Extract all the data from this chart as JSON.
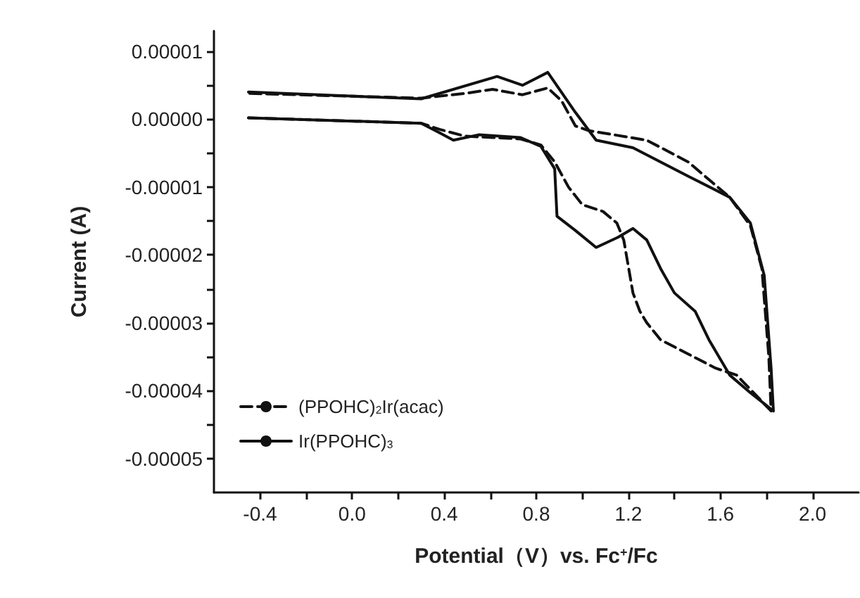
{
  "chart_data": {
    "type": "line",
    "xlabel": "Potential（V）vs. Fc$^{+}$/Fc",
    "ylabel": "Current (A)",
    "xlim": [
      -0.6,
      2.2
    ],
    "xticks": [
      {
        "value": -0.4,
        "label": "-0.4"
      },
      {
        "value": -0.2,
        "label": null
      },
      {
        "value": 0,
        "label": "0.0"
      },
      {
        "value": 0.2,
        "label": null
      },
      {
        "value": 0.4,
        "label": "0.4"
      },
      {
        "value": 0.6,
        "label": null
      },
      {
        "value": 0.8,
        "label": "0.8"
      },
      {
        "value": 1.0,
        "label": null
      },
      {
        "value": 1.2,
        "label": "1.2"
      },
      {
        "value": 1.4,
        "label": null
      },
      {
        "value": 1.6,
        "label": "1.6"
      },
      {
        "value": 1.8,
        "label": null
      },
      {
        "value": 2.0,
        "label": "2.0"
      }
    ],
    "ylim": [
      -5.5e-05,
      1.3e-05
    ],
    "yticks": [
      {
        "value": 1e-05,
        "label": "0.00001"
      },
      {
        "value": 5e-06,
        "label": null
      },
      {
        "value": 0,
        "label": "0.00000"
      },
      {
        "value": -5e-06,
        "label": null
      },
      {
        "value": -1e-05,
        "label": "-0.00001"
      },
      {
        "value": -1.5e-05,
        "label": null
      },
      {
        "value": -2e-05,
        "label": "-0.00002"
      },
      {
        "value": -2.5e-05,
        "label": null
      },
      {
        "value": -3e-05,
        "label": "-0.00003"
      },
      {
        "value": -3.5e-05,
        "label": null
      },
      {
        "value": -4e-05,
        "label": "-0.00004"
      },
      {
        "value": -4.5e-05,
        "label": null
      },
      {
        "value": -5e-05,
        "label": "-0.00005"
      }
    ],
    "grid": false,
    "legend": "bottom left",
    "marker": "none",
    "series": [
      {
        "name": "(PPOHC)$_{2}$Ir(acac)",
        "color": "#111111",
        "line_style": "dashed",
        "x": [
          -0.45,
          0.3,
          0.38,
          0.49,
          0.61,
          0.73,
          0.82,
          0.88,
          0.94,
          1.0,
          1.09,
          1.15,
          1.18,
          1.22,
          1.25,
          1.28,
          1.34,
          1.46,
          1.58,
          1.67,
          1.82,
          1.81,
          1.78,
          1.73,
          1.64,
          1.46,
          1.28,
          1.03,
          0.97,
          0.91,
          0.85,
          0.74,
          0.61,
          0.49,
          0.3,
          -0.45
        ],
        "values": [
          2e-07,
          -6e-07,
          -1.5e-06,
          -2.5e-06,
          -2.7e-06,
          -2.9e-06,
          -3.8e-06,
          -6.3e-06,
          -1e-05,
          -1.26e-05,
          -1.36e-05,
          -1.53e-05,
          -1.78e-05,
          -2.56e-05,
          -2.83e-05,
          -3e-05,
          -3.25e-05,
          -3.46e-05,
          -3.67e-05,
          -3.77e-05,
          -4.3e-05,
          -3.5e-05,
          -2.2e-05,
          -1.57e-05,
          -1.15e-05,
          -6.3e-06,
          -3.1e-06,
          -1.7e-06,
          -1e-06,
          2.7e-06,
          4.6e-06,
          3.6e-06,
          4.4e-06,
          3.8e-06,
          3.1e-06,
          3.8e-06
        ]
      },
      {
        "name": "Ir(PPOHC)$_{3}$",
        "color": "#111111",
        "line_style": "solid",
        "x": [
          -0.45,
          0.3,
          0.38,
          0.44,
          0.55,
          0.73,
          0.82,
          0.88,
          0.89,
          0.97,
          1.06,
          1.155,
          1.22,
          1.28,
          1.34,
          1.4,
          1.49,
          1.55,
          1.64,
          1.73,
          1.83,
          1.82,
          1.79,
          1.73,
          1.64,
          1.46,
          1.22,
          1.06,
          0.97,
          0.85,
          0.74,
          0.63,
          0.3,
          -0.45
        ],
        "values": [
          2e-07,
          -6e-07,
          -2e-06,
          -3.1e-06,
          -2.3e-06,
          -2.7e-06,
          -4e-06,
          -7.3e-06,
          -1.43e-05,
          -1.64e-05,
          -1.89e-05,
          -1.74e-05,
          -1.61e-05,
          -1.78e-05,
          -2.2e-05,
          -2.56e-05,
          -2.83e-05,
          -3.25e-05,
          -3.77e-05,
          -4.03e-05,
          -4.3e-05,
          -3.67e-05,
          -2.3e-05,
          -1.53e-05,
          -1.15e-05,
          -8.4e-06,
          -4.2e-06,
          -3.1e-06,
          1e-06,
          6.9e-06,
          5e-06,
          6.3e-06,
          3e-06,
          4e-06
        ]
      }
    ]
  }
}
